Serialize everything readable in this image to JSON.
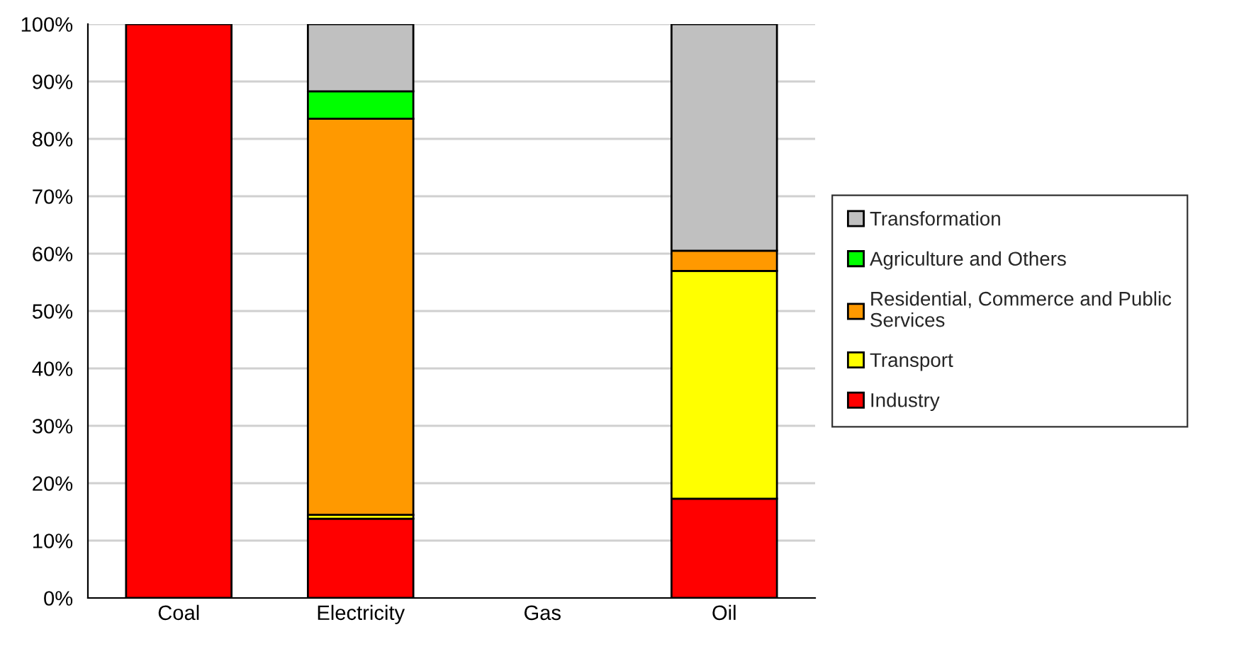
{
  "chart_data": {
    "type": "bar",
    "stacked": true,
    "categories": [
      "Coal",
      "Electricity",
      "Gas",
      "Oil"
    ],
    "series": [
      {
        "name": "Industry",
        "color": "#ff0000",
        "values": [
          100,
          13.8,
          null,
          17.3
        ]
      },
      {
        "name": "Transport",
        "color": "#ffff00",
        "values": [
          null,
          0.7,
          null,
          39.7
        ]
      },
      {
        "name": "Residential, Commerce and Public Services",
        "color": "#ff9900",
        "values": [
          null,
          69.0,
          null,
          3.5
        ]
      },
      {
        "name": "Agriculture and Others",
        "color": "#00ff00",
        "values": [
          null,
          4.8,
          null,
          null
        ]
      },
      {
        "name": "Transformation",
        "color": "#c0c0c0",
        "values": [
          null,
          11.7,
          null,
          39.5
        ]
      }
    ],
    "ylim": [
      0,
      100
    ],
    "yticks": [
      {
        "value": 0,
        "label": "0%"
      },
      {
        "value": 10,
        "label": "10%"
      },
      {
        "value": 20,
        "label": "20%"
      },
      {
        "value": 30,
        "label": "30%"
      },
      {
        "value": 40,
        "label": "40%"
      },
      {
        "value": 50,
        "label": "50%"
      },
      {
        "value": 60,
        "label": "60%"
      },
      {
        "value": 70,
        "label": "70%"
      },
      {
        "value": 80,
        "label": "80%"
      },
      {
        "value": 90,
        "label": "90%"
      },
      {
        "value": 100,
        "label": "100%"
      }
    ],
    "grid": "y",
    "legend": "right"
  }
}
